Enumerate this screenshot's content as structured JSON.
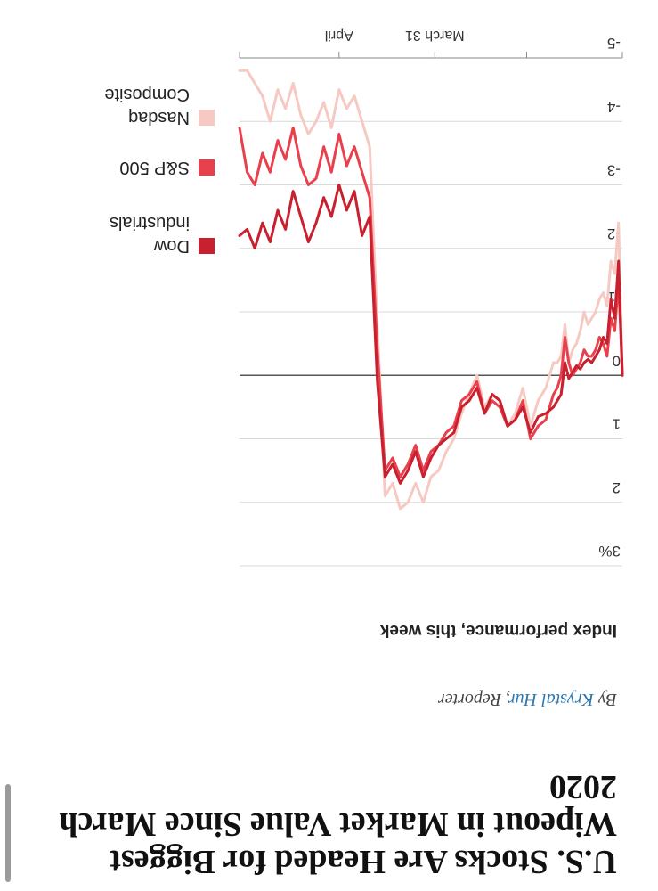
{
  "article": {
    "headline": "U.S. Stocks Are Headed for Biggest Wipeout in Market Value Since March 2020",
    "byline_prefix": "By",
    "author": "Krystal Hur",
    "byline_suffix": ", Reporter"
  },
  "colors": {
    "dow": "#c8202e",
    "sp500": "#e8404c",
    "nasdaq": "#f6c9c2",
    "zero_line": "#555555",
    "grid": "#d9d9d9"
  },
  "chart_data": {
    "type": "line",
    "title": "Index performance, this week",
    "ylim": [
      -5,
      3
    ],
    "yticks": [
      3,
      2,
      1,
      0,
      -1,
      -2,
      -3,
      -4,
      -5
    ],
    "ytick_labels": [
      "3%",
      "2",
      "1",
      "0",
      "-1",
      "-2",
      "-3",
      "-4",
      "-5"
    ],
    "xlim": [
      0,
      100
    ],
    "x_ticks": [
      {
        "x": 0,
        "label": ""
      },
      {
        "x": 25,
        "label": ""
      },
      {
        "x": 49,
        "label": "March 31"
      },
      {
        "x": 74,
        "label": "April"
      },
      {
        "x": 100,
        "label": ""
      }
    ],
    "legend_position": "right",
    "grid": true,
    "series": [
      {
        "name": "Dow industrials",
        "color": "#c8202e",
        "x": [
          0,
          1,
          2,
          3,
          4,
          5,
          6,
          7,
          8,
          9,
          10,
          11,
          12,
          13,
          14,
          15,
          16,
          17,
          18,
          20,
          22,
          24,
          26,
          28,
          30,
          32,
          34,
          36,
          38,
          40,
          42,
          44,
          46,
          48,
          50,
          52,
          54,
          56,
          58,
          60,
          62,
          64,
          66,
          68,
          70,
          72,
          74,
          76,
          78,
          80,
          82,
          84,
          86,
          88,
          90,
          92,
          94,
          96,
          98,
          100
        ],
        "values": [
          0,
          -1.8,
          -0.9,
          -1.2,
          -0.5,
          -0.6,
          -0.4,
          -0.3,
          -0.2,
          -0.25,
          -0.2,
          -0.1,
          -0.15,
          -0.05,
          0.05,
          -0.2,
          0.3,
          0.4,
          0.5,
          0.6,
          0.65,
          0.9,
          0.5,
          0.7,
          0.8,
          0.4,
          0.3,
          0.6,
          0.2,
          0.4,
          0.5,
          0.9,
          1.0,
          1.1,
          1.3,
          1.6,
          1.2,
          1.5,
          1.7,
          1.4,
          1.6,
          0.1,
          -2.5,
          -2.2,
          -2.9,
          -2.6,
          -3.0,
          -2.5,
          -2.8,
          -2.4,
          -2.1,
          -2.5,
          -2.9,
          -2.3,
          -2.6,
          -2.1,
          -2.4,
          -2.0,
          -2.3,
          -2.2
        ]
      },
      {
        "name": "S&P 500",
        "color": "#e8404c",
        "x": [
          0,
          1,
          2,
          3,
          4,
          5,
          6,
          7,
          8,
          9,
          10,
          11,
          12,
          13,
          14,
          15,
          16,
          17,
          18,
          20,
          22,
          24,
          26,
          28,
          30,
          32,
          34,
          36,
          38,
          40,
          42,
          44,
          46,
          48,
          50,
          52,
          54,
          56,
          58,
          60,
          62,
          64,
          66,
          68,
          70,
          72,
          74,
          76,
          78,
          80,
          82,
          84,
          86,
          88,
          90,
          92,
          94,
          96,
          98,
          100
        ],
        "values": [
          0,
          -1.5,
          -0.7,
          -0.9,
          -0.3,
          -0.5,
          -0.6,
          -0.4,
          -0.3,
          -0.3,
          -0.4,
          -0.2,
          -0.1,
          0.0,
          -0.2,
          -0.6,
          0.0,
          0.2,
          0.3,
          0.7,
          0.8,
          1.0,
          0.4,
          0.7,
          0.8,
          0.5,
          0.4,
          0.6,
          0.1,
          0.3,
          0.4,
          0.8,
          0.9,
          1.1,
          1.2,
          1.5,
          1.1,
          1.4,
          1.6,
          1.3,
          1.5,
          -0.4,
          -2.8,
          -3.2,
          -3.6,
          -3.3,
          -3.8,
          -3.2,
          -3.6,
          -3.1,
          -3.0,
          -3.3,
          -3.9,
          -3.4,
          -3.7,
          -3.2,
          -3.5,
          -3.0,
          -3.2,
          -3.9
        ]
      },
      {
        "name": "Nasdaq Composite",
        "color": "#f6c9c2",
        "x": [
          0,
          1,
          2,
          3,
          4,
          5,
          6,
          7,
          8,
          9,
          10,
          11,
          12,
          13,
          14,
          15,
          16,
          17,
          18,
          20,
          22,
          24,
          26,
          28,
          30,
          32,
          34,
          36,
          38,
          40,
          42,
          44,
          46,
          48,
          50,
          52,
          54,
          56,
          58,
          60,
          62,
          64,
          66,
          68,
          70,
          72,
          74,
          76,
          78,
          80,
          82,
          84,
          86,
          88,
          90,
          92,
          94,
          96,
          98,
          100
        ],
        "values": [
          0,
          -2.4,
          -1.6,
          -1.8,
          -1.1,
          -1.3,
          -1.2,
          -1.0,
          -0.9,
          -0.8,
          -1.0,
          -0.7,
          -0.5,
          -0.4,
          -0.2,
          -0.8,
          -0.3,
          -0.2,
          -0.2,
          0.2,
          0.4,
          0.8,
          0.2,
          0.6,
          0.8,
          0.4,
          0.3,
          0.5,
          0.0,
          0.3,
          0.6,
          1.0,
          1.2,
          1.5,
          1.6,
          2.0,
          1.7,
          2.0,
          2.1,
          1.7,
          1.9,
          -0.8,
          -3.6,
          -4.0,
          -4.4,
          -4.2,
          -4.5,
          -3.9,
          -4.3,
          -4.0,
          -3.8,
          -4.1,
          -4.6,
          -4.2,
          -4.5,
          -4.0,
          -4.4,
          -4.6,
          -4.8,
          -4.8
        ]
      }
    ]
  }
}
